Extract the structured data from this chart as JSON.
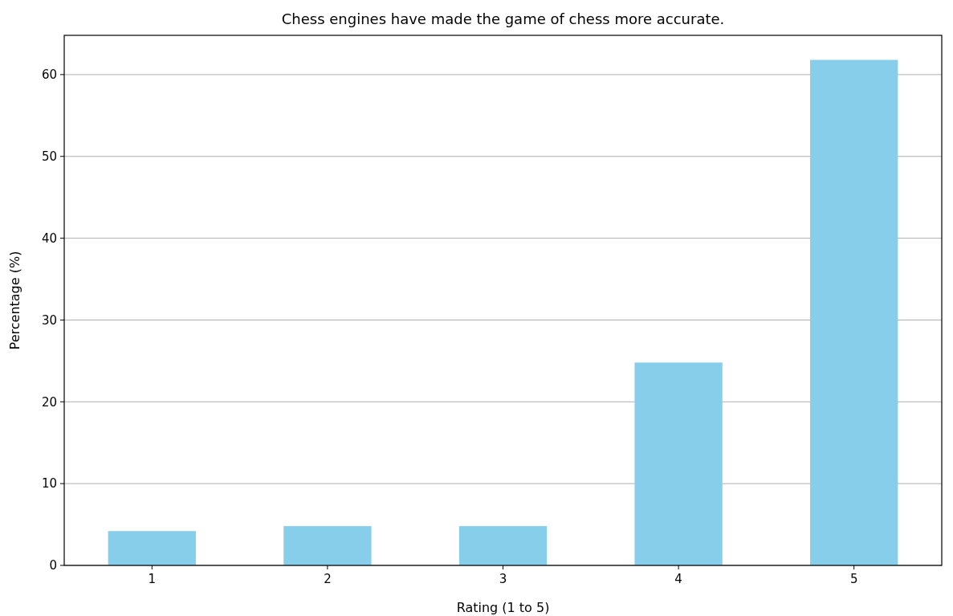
{
  "chart_data": {
    "type": "bar",
    "title": "Chess engines have made the game of chess more accurate.",
    "xlabel": "Rating (1 to 5)",
    "ylabel": "Percentage (%)",
    "categories": [
      "1",
      "2",
      "3",
      "4",
      "5"
    ],
    "values": [
      4.2,
      4.8,
      4.8,
      24.8,
      61.8
    ],
    "color": "#87ceeb",
    "ylim": [
      0,
      64.8
    ],
    "yticks": [
      0,
      10,
      20,
      30,
      40,
      50,
      60
    ],
    "grid": "y"
  }
}
